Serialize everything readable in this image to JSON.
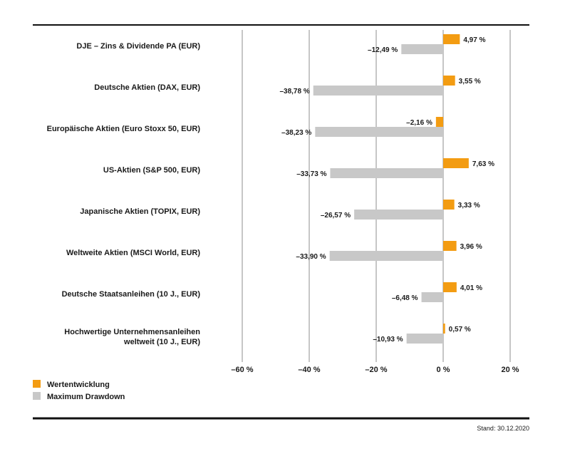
{
  "chart_data": {
    "type": "bar",
    "orientation": "horizontal",
    "categories": [
      [
        "DJE – Zins & Dividende PA (EUR)"
      ],
      [
        "Deutsche Aktien (DAX, EUR)"
      ],
      [
        "Europäische Aktien (Euro Stoxx 50, EUR)"
      ],
      [
        "US-Aktien (S&P 500, EUR)"
      ],
      [
        "Japanische Aktien (TOPIX, EUR)"
      ],
      [
        "Weltweite Aktien (MSCI World, EUR)"
      ],
      [
        "Deutsche Staatsanleihen (10 J., EUR)"
      ],
      [
        "Hochwertige Unternehmensanleihen",
        "weltweit (10 J., EUR)"
      ]
    ],
    "series": [
      {
        "name": "Wertentwicklung",
        "color": "#f39c12",
        "values": [
          4.97,
          3.55,
          -2.16,
          7.63,
          3.33,
          3.96,
          4.01,
          0.57
        ],
        "labels": [
          "4,97 %",
          "3,55 %",
          "–2,16 %",
          "7,63 %",
          "3,33 %",
          "3,96 %",
          "4,01 %",
          "0,57 %"
        ]
      },
      {
        "name": "Maximum Drawdown",
        "color": "#c8c8c8",
        "values": [
          -12.49,
          -38.78,
          -38.23,
          -33.73,
          -26.57,
          -33.9,
          -6.48,
          -10.93
        ],
        "labels": [
          "–12,49 %",
          "–38,78 %",
          "–38,23 %",
          "–33,73 %",
          "–26,57 %",
          "–33,90 %",
          "–6,48 %",
          "–10,93 %"
        ]
      }
    ],
    "xlim": [
      -60,
      20
    ],
    "ticks": [
      -60,
      -40,
      -20,
      0,
      20
    ],
    "tick_labels": [
      "–60 %",
      "–40 %",
      "–20 %",
      "0 %",
      "20 %"
    ],
    "grid": true,
    "legend_position": "bottom-left"
  },
  "footnote": "Stand: 30.12.2020"
}
